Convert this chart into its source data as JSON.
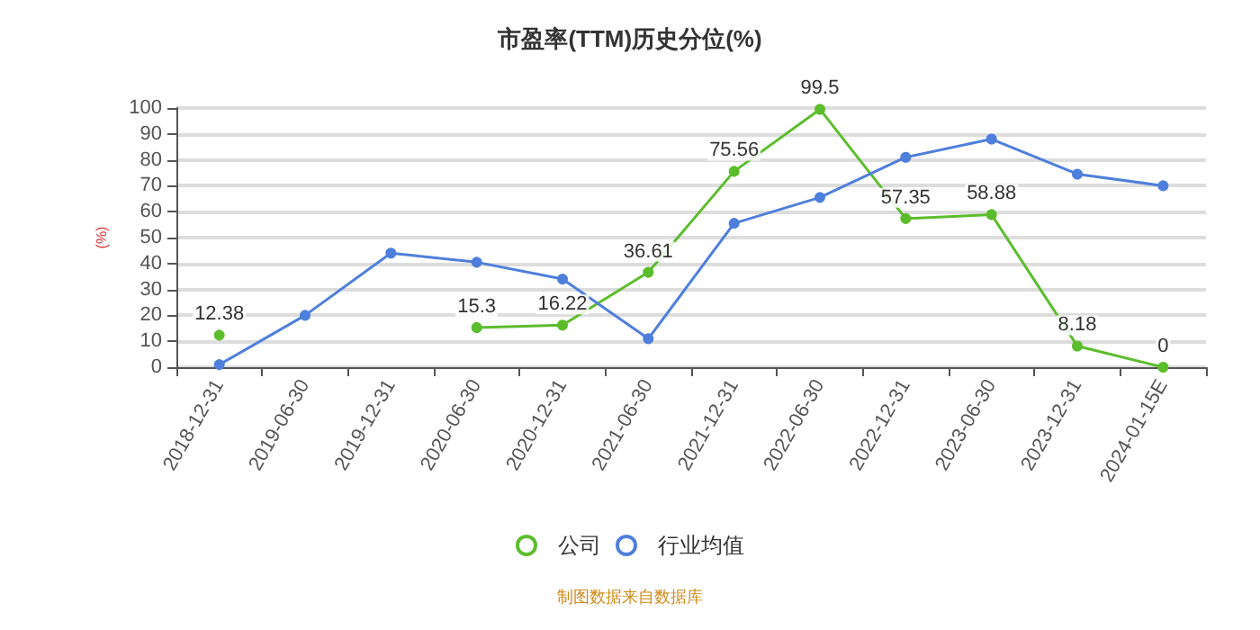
{
  "chart_data": {
    "type": "line",
    "title": "市盈率(TTM)历史分位(%)",
    "ylabel": "(%)",
    "categories": [
      "2018-12-31",
      "2019-06-30",
      "2019-12-31",
      "2020-06-30",
      "2020-12-31",
      "2021-06-30",
      "2021-12-31",
      "2022-06-30",
      "2022-12-31",
      "2023-06-30",
      "2023-12-31",
      "2024-01-15E"
    ],
    "series": [
      {
        "name": "公司",
        "color": "#5cbd2c",
        "values": [
          12.38,
          null,
          null,
          15.3,
          16.22,
          36.61,
          75.56,
          99.5,
          57.35,
          58.88,
          8.18,
          0
        ],
        "value_labels": [
          "12.38",
          null,
          null,
          "15.3",
          "16.22",
          "36.61",
          "75.56",
          "99.5",
          "57.35",
          "58.88",
          "8.18",
          "0"
        ]
      },
      {
        "name": "行业均值",
        "color": "#4f7fdc",
        "values": [
          1,
          20,
          44,
          40.5,
          34,
          11,
          55.5,
          65.5,
          81,
          88,
          74.5,
          70
        ]
      }
    ],
    "ylim": [
      0,
      100
    ],
    "yticks": [
      0,
      10,
      20,
      30,
      40,
      50,
      60,
      70,
      80,
      90,
      100
    ],
    "grid": "y",
    "legend": "bottom",
    "marker": "circle",
    "line_style": "solid",
    "annotations": [
      "制图数据来自数据库"
    ]
  }
}
